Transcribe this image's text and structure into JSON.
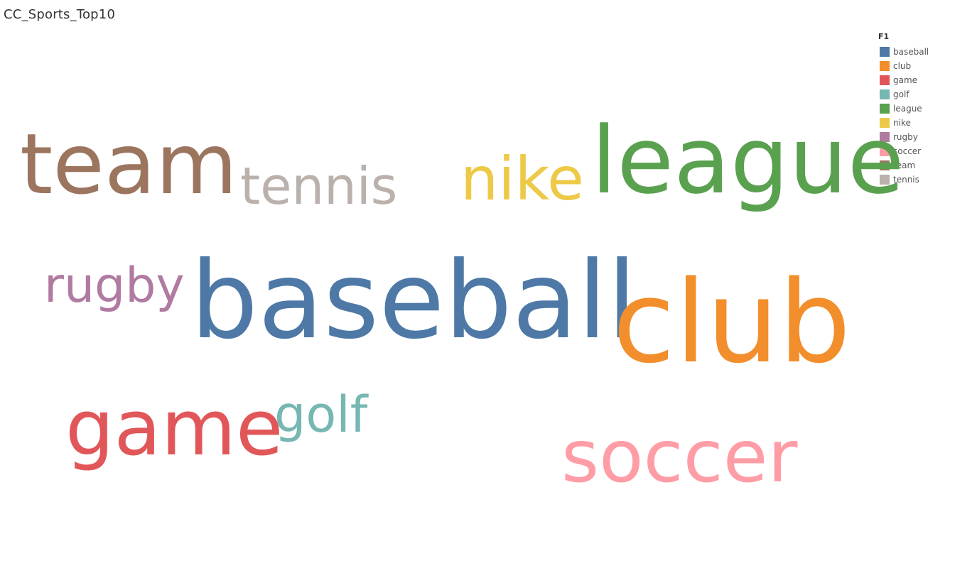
{
  "sheet": {
    "title": "CC_Sports_Top10"
  },
  "legend": {
    "title": "F1",
    "items": [
      {
        "label": "baseball",
        "color": "#4e79a7"
      },
      {
        "label": "club",
        "color": "#f28e2b"
      },
      {
        "label": "game",
        "color": "#e15759"
      },
      {
        "label": "golf",
        "color": "#76b7b2"
      },
      {
        "label": "league",
        "color": "#59a14f"
      },
      {
        "label": "nike",
        "color": "#edc948"
      },
      {
        "label": "rugby",
        "color": "#b07aa1"
      },
      {
        "label": "soccer",
        "color": "#ff9da7"
      },
      {
        "label": "team",
        "color": "#9c755f"
      },
      {
        "label": "tennis",
        "color": "#bab0ac"
      }
    ]
  },
  "chart_data": {
    "type": "wordcloud",
    "words": [
      {
        "text": "baseball",
        "color": "#4e79a7",
        "rank": 1
      },
      {
        "text": "club",
        "color": "#f28e2b",
        "rank": 2
      },
      {
        "text": "league",
        "color": "#59a14f",
        "rank": 3
      },
      {
        "text": "team",
        "color": "#9c755f",
        "rank": 4
      },
      {
        "text": "game",
        "color": "#e15759",
        "rank": 5
      },
      {
        "text": "soccer",
        "color": "#ff9da7",
        "rank": 6
      },
      {
        "text": "nike",
        "color": "#edc948",
        "rank": 7
      },
      {
        "text": "tennis",
        "color": "#bab0ac",
        "rank": 8
      },
      {
        "text": "rugby",
        "color": "#b07aa1",
        "rank": 9
      },
      {
        "text": "golf",
        "color": "#76b7b2",
        "rank": 10
      }
    ]
  }
}
